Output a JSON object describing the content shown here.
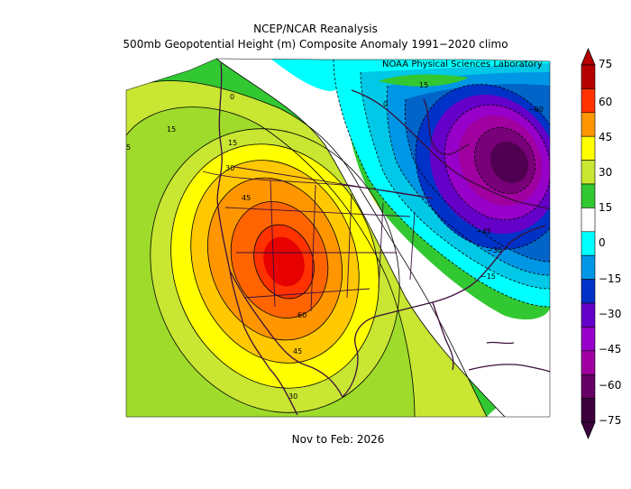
{
  "header": {
    "title_line1": "NCEP/NCAR Reanalysis",
    "title_line2": "500mb Geopotential Height (m) Composite Anomaly 1991−2020 climo",
    "credit": "NOAA Physical Sciences Laboratory"
  },
  "footer": {
    "period": "Nov to Feb: 2026"
  },
  "colorbar": {
    "levels": [
      {
        "label": "75",
        "color": "#b40000"
      },
      {
        "label": "60",
        "color": "#ff3200"
      },
      {
        "label": "45",
        "color": "#ff9600"
      },
      {
        "label": "30",
        "color": "#ffff00"
      },
      {
        "label": "15",
        "color": "#c8e632"
      },
      {
        "label": "0",
        "color": "#32c832"
      },
      {
        "label": "",
        "color": "#ffffff"
      },
      {
        "label": "−15",
        "color": "#00ffff"
      },
      {
        "label": "−30",
        "color": "#0096e6"
      },
      {
        "label": "−45",
        "color": "#0032c8"
      },
      {
        "label": "",
        "color": "#6400c8"
      },
      {
        "label": "−60",
        "color": "#9600c8"
      },
      {
        "label": "",
        "color": "#a000a0"
      },
      {
        "label": "−75",
        "color": "#640064"
      },
      {
        "label": "",
        "color": "#3c003c"
      }
    ],
    "tick_labels": [
      "75",
      "60",
      "45",
      "30",
      "15",
      "0",
      "−15",
      "−30",
      "−45",
      "−60",
      "−75"
    ]
  },
  "contour_labels": [
    "15",
    "0",
    "15",
    "0",
    "−60",
    "15",
    "30",
    "45",
    "60",
    "−45",
    "−30",
    "−15",
    "60",
    "45",
    "30",
    "5"
  ]
}
